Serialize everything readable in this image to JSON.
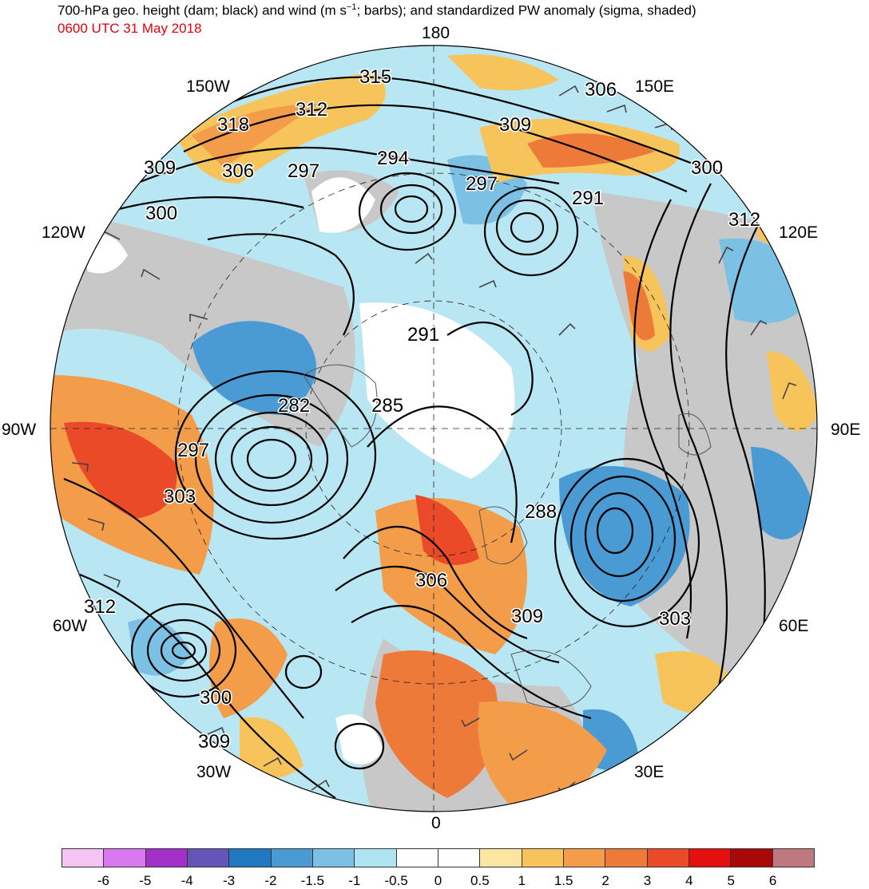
{
  "title": {
    "line1_prefix": "700-hPa geo. height (dam; black) and wind (m s",
    "line1_exp": "−1",
    "line1_suffix": "; barbs); and standardized PW anomaly (sigma, shaded)",
    "valid_time": "0600 UTC 31 May 2018",
    "valid_time_color": "#e8000b"
  },
  "longitude_labels": {
    "top": "180",
    "bottom": "0",
    "left": "90W",
    "right": "90E",
    "upper_left_150": "150W",
    "upper_right_150": "150E",
    "upper_left_120": "120W",
    "upper_right_120": "120E",
    "lower_left_60": "60W",
    "lower_right_60": "60E",
    "lower_left_30": "30W",
    "lower_right_30": "30E"
  },
  "contour_labels": [
    "315",
    "312",
    "318",
    "309",
    "306",
    "297",
    "294",
    "297",
    "309",
    "306",
    "300",
    "300",
    "312",
    "291",
    "291",
    "282",
    "285",
    "297",
    "303",
    "288",
    "306",
    "309",
    "303",
    "312",
    "300",
    "309"
  ],
  "colorbar": {
    "ticks": [
      "-6",
      "-5",
      "-4",
      "-3",
      "-2",
      "-1.5",
      "-1",
      "-0.5",
      "0",
      "0.5",
      "1",
      "1.5",
      "2",
      "3",
      "4",
      "5",
      "6"
    ],
    "colors": [
      "#f5c4f5",
      "#d878ee",
      "#a330c8",
      "#6655b8",
      "#1f78c0",
      "#4a9ad3",
      "#7cc0e4",
      "#aee3f2",
      "#ffffff",
      "#ffffff",
      "#fbe5a0",
      "#f6c45a",
      "#f39c4a",
      "#ee7a3a",
      "#ea4a28",
      "#e50f10",
      "#a80808",
      "#c07880"
    ]
  },
  "colors": {
    "height_contours": "#000000",
    "land_mask": "#c8c8c8",
    "coastlines": "#555555"
  }
}
